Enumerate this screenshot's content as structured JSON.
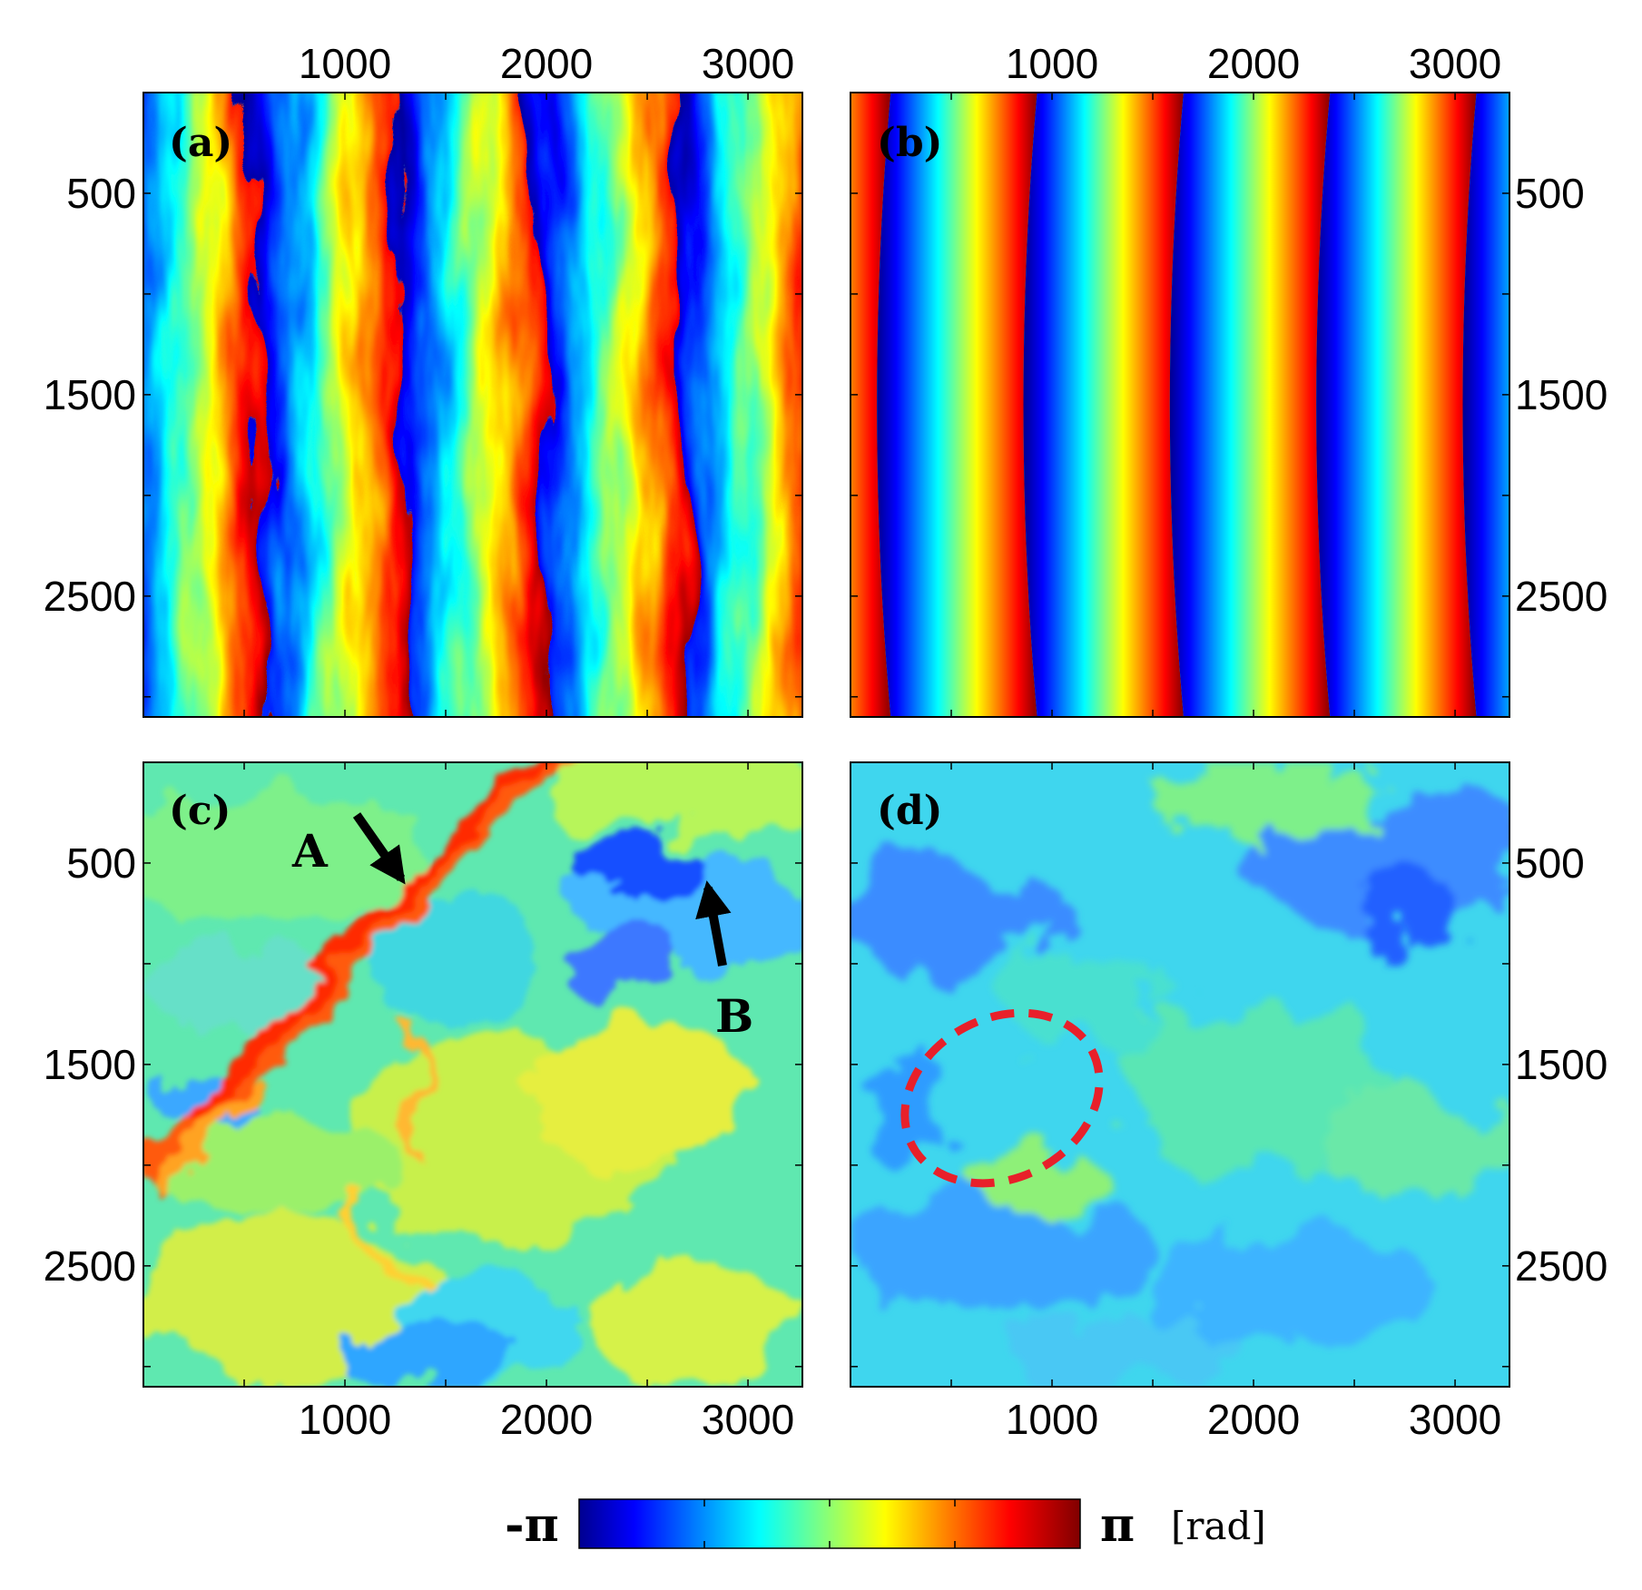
{
  "chart_data": [
    {
      "type": "heatmap",
      "panel_label": "(a)",
      "pattern": "noisy wrapped fringes, roughly vertical",
      "x_ticks": [
        "1000",
        "2000",
        "3000"
      ],
      "y_ticks": [
        "500",
        "1500",
        "2500"
      ],
      "xlim": [
        0,
        3270
      ],
      "ylim": [
        0,
        3100
      ],
      "fringe_cycles_across_x": 4.7
    },
    {
      "type": "heatmap",
      "panel_label": "(b)",
      "pattern": "smooth curved simulated fringes",
      "x_ticks": [
        "1000",
        "2000",
        "3000"
      ],
      "y_ticks": [
        "500",
        "1500",
        "2500"
      ],
      "xlim": [
        0,
        3270
      ],
      "ylim": [
        0,
        3100
      ],
      "fringe_cycles_across_x": 4.5
    },
    {
      "type": "heatmap",
      "panel_label": "(c)",
      "pattern": "residual phase with diagonal ridge",
      "x_ticks": [
        "1000",
        "2000",
        "3000"
      ],
      "y_ticks": [
        "500",
        "1500",
        "2500"
      ],
      "xlim": [
        0,
        3270
      ],
      "ylim": [
        0,
        3100
      ],
      "annotations": [
        {
          "label": "A",
          "points_to": [
            1330,
            780
          ]
        },
        {
          "label": "B",
          "points_to": [
            2780,
            640
          ]
        }
      ]
    },
    {
      "type": "heatmap",
      "panel_label": "(d)",
      "pattern": "flattened residual, mostly cyan",
      "x_ticks": [
        "1000",
        "2000",
        "3000"
      ],
      "y_ticks": [
        "500",
        "1500",
        "2500"
      ],
      "xlim": [
        0,
        3270
      ],
      "ylim": [
        0,
        3100
      ],
      "highlight": {
        "shape": "dashed ellipse",
        "color": "#e8202a",
        "center": [
          750,
          1690
        ]
      }
    }
  ],
  "colorbar": {
    "min_label": "-π",
    "max_label": "π",
    "unit": "[rad]",
    "colormap": "jet",
    "stops": [
      "#00008f",
      "#0000ff",
      "#00ffff",
      "#ffff00",
      "#ff0000",
      "#800000"
    ]
  }
}
